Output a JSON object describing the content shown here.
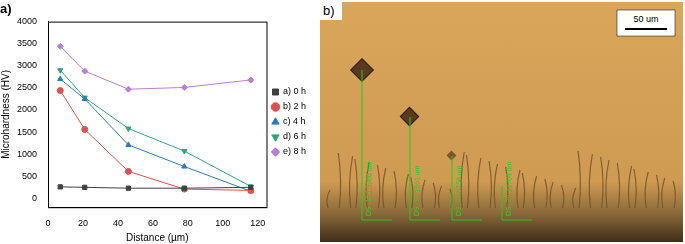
{
  "chart_data": {
    "type": "line",
    "title": "a)",
    "x_label": "Distance (µm)",
    "y_label": "Microhardness (HV)",
    "x": [
      7,
      21,
      46,
      78,
      116
    ],
    "series": [
      {
        "name": "a) 0 h",
        "color": "#404040",
        "marker": "square",
        "values": [
          260,
          250,
          230,
          230,
          250
        ]
      },
      {
        "name": "b) 2 h",
        "color": "#d9534f",
        "marker": "circle",
        "values": [
          2440,
          1560,
          610,
          210,
          180
        ]
      },
      {
        "name": "c) 4 h",
        "color": "#2b7bb9",
        "marker": "triangle",
        "values": [
          2700,
          2250,
          1210,
          720,
          160
        ]
      },
      {
        "name": "d) 6 h",
        "color": "#33a37a",
        "marker": "triangle_down",
        "values": [
          2900,
          2280,
          1580,
          1070,
          270
        ]
      },
      {
        "name": "e) 8 h",
        "color": "#b77fd6",
        "marker": "diamond",
        "values": [
          3440,
          2880,
          2470,
          2510,
          2680
        ]
      }
    ],
    "xlim": [
      0,
      125
    ],
    "xticks": [
      0,
      20,
      40,
      60,
      80,
      100,
      120
    ],
    "ylim": [
      -200,
      4000
    ],
    "yticks": [
      0,
      500,
      1000,
      1500,
      2000,
      2500,
      3000,
      3500,
      4000
    ],
    "legend": "right",
    "grid": false
  },
  "image_panel": {
    "label": "b)",
    "scale_bar": "50 um",
    "measurements": [
      "DS: 153.5986 um",
      "DS: 94.1961 um",
      "DS: 46.0758 um",
      "DS: 20.33704 um"
    ]
  }
}
